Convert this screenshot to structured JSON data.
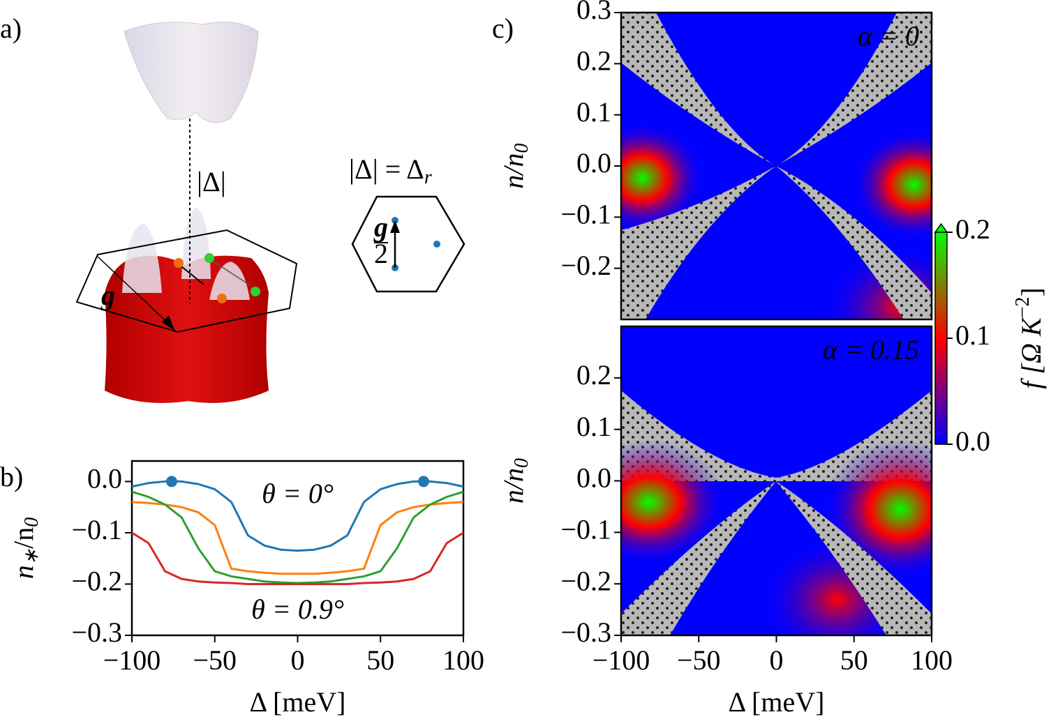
{
  "panel_labels": [
    "a)",
    "b)",
    "c)"
  ],
  "diagram": {
    "gap_label": "|Δ|",
    "vector_label": "g",
    "inset_title": [
      "|Δ| = Δ",
      "r"
    ],
    "inset_vector_label": [
      "g",
      "2"
    ]
  },
  "chart_data": [
    {
      "type": "line",
      "xlabel": "Δ [meV]",
      "ylabel": [
        "n",
        "∗",
        "/n",
        "0"
      ],
      "x": [
        -100,
        -90,
        -80,
        -70,
        -60,
        -50,
        -40,
        -30,
        -20,
        -10,
        0,
        10,
        20,
        30,
        40,
        50,
        60,
        70,
        80,
        90,
        100
      ],
      "series": [
        {
          "name": "θ = 0°",
          "color": "#1f77b4",
          "values": [
            -0.01,
            -0.003,
            0,
            0,
            -0.005,
            -0.015,
            -0.04,
            -0.105,
            -0.125,
            -0.133,
            -0.135,
            -0.133,
            -0.125,
            -0.105,
            -0.04,
            -0.015,
            -0.005,
            0,
            0,
            -0.003,
            -0.01
          ]
        },
        {
          "color": "#ff7f0e",
          "values": [
            -0.04,
            -0.042,
            -0.045,
            -0.05,
            -0.06,
            -0.085,
            -0.17,
            -0.175,
            -0.178,
            -0.18,
            -0.18,
            -0.18,
            -0.178,
            -0.175,
            -0.17,
            -0.085,
            -0.06,
            -0.05,
            -0.045,
            -0.042,
            -0.04
          ]
        },
        {
          "color": "#2ca02c",
          "values": [
            -0.02,
            -0.03,
            -0.045,
            -0.07,
            -0.13,
            -0.175,
            -0.185,
            -0.19,
            -0.195,
            -0.197,
            -0.198,
            -0.197,
            -0.195,
            -0.19,
            -0.185,
            -0.175,
            -0.13,
            -0.07,
            -0.045,
            -0.03,
            -0.02
          ]
        },
        {
          "name": "θ = 0.9°",
          "color": "#d62728",
          "values": [
            -0.1,
            -0.12,
            -0.175,
            -0.19,
            -0.195,
            -0.197,
            -0.198,
            -0.2,
            -0.2,
            -0.2,
            -0.2,
            -0.2,
            -0.2,
            -0.2,
            -0.198,
            -0.197,
            -0.195,
            -0.19,
            -0.175,
            -0.12,
            -0.1
          ]
        }
      ],
      "markers": {
        "color": "#1f77b4",
        "x": [
          -76,
          76
        ],
        "values": [
          0,
          0
        ]
      },
      "xlim": [
        -100,
        100
      ],
      "ylim": [
        -0.3,
        0.04
      ],
      "xticks": [
        {
          "value": -100,
          "label": "−100"
        },
        {
          "value": -50,
          "label": "−50"
        },
        0,
        50,
        100
      ],
      "yticks": [
        {
          "value": 0,
          "label": "0.0"
        },
        {
          "value": -0.1,
          "label": "−0.1"
        },
        {
          "value": -0.2,
          "label": "−0.2"
        },
        {
          "value": -0.3,
          "label": "−0.3"
        }
      ]
    },
    {
      "type": "heatmap",
      "annotation": "α = 0",
      "ylabel": [
        "n/n",
        "0"
      ],
      "xlim": [
        -100,
        100
      ],
      "ylim": [
        -0.3,
        0.3
      ],
      "yticks": [
        0.3,
        0.2,
        0.1,
        {
          "value": 0,
          "label": "0.0"
        },
        {
          "value": -0.1,
          "label": "−0.1"
        },
        {
          "value": -0.2,
          "label": "−0.2"
        }
      ],
      "colorbar": {
        "label": [
          "f [Ω K",
          "−2",
          "]"
        ],
        "clim": [
          0,
          0.2
        ],
        "colors": [
          "#0000ff",
          "#ff0000",
          "#00ff00"
        ],
        "ticks": [
          {
            "value": 0,
            "label": "0.0"
          },
          0.1,
          0.2
        ]
      }
    },
    {
      "type": "heatmap",
      "annotation": "α = 0.15",
      "ylabel": [
        "n/n",
        "0"
      ],
      "xlabel": "Δ [meV]",
      "xlim": [
        -100,
        100
      ],
      "ylim": [
        -0.3,
        0.3
      ],
      "xticks": [
        {
          "value": -100,
          "label": "−100"
        },
        {
          "value": -50,
          "label": "−50"
        },
        0,
        50,
        100
      ],
      "yticks": [
        0.2,
        0.1,
        {
          "value": 0,
          "label": "0.0"
        },
        {
          "value": -0.1,
          "label": "−0.1"
        },
        {
          "value": -0.2,
          "label": "−0.2"
        },
        {
          "value": -0.3,
          "label": "−0.3"
        }
      ]
    }
  ]
}
